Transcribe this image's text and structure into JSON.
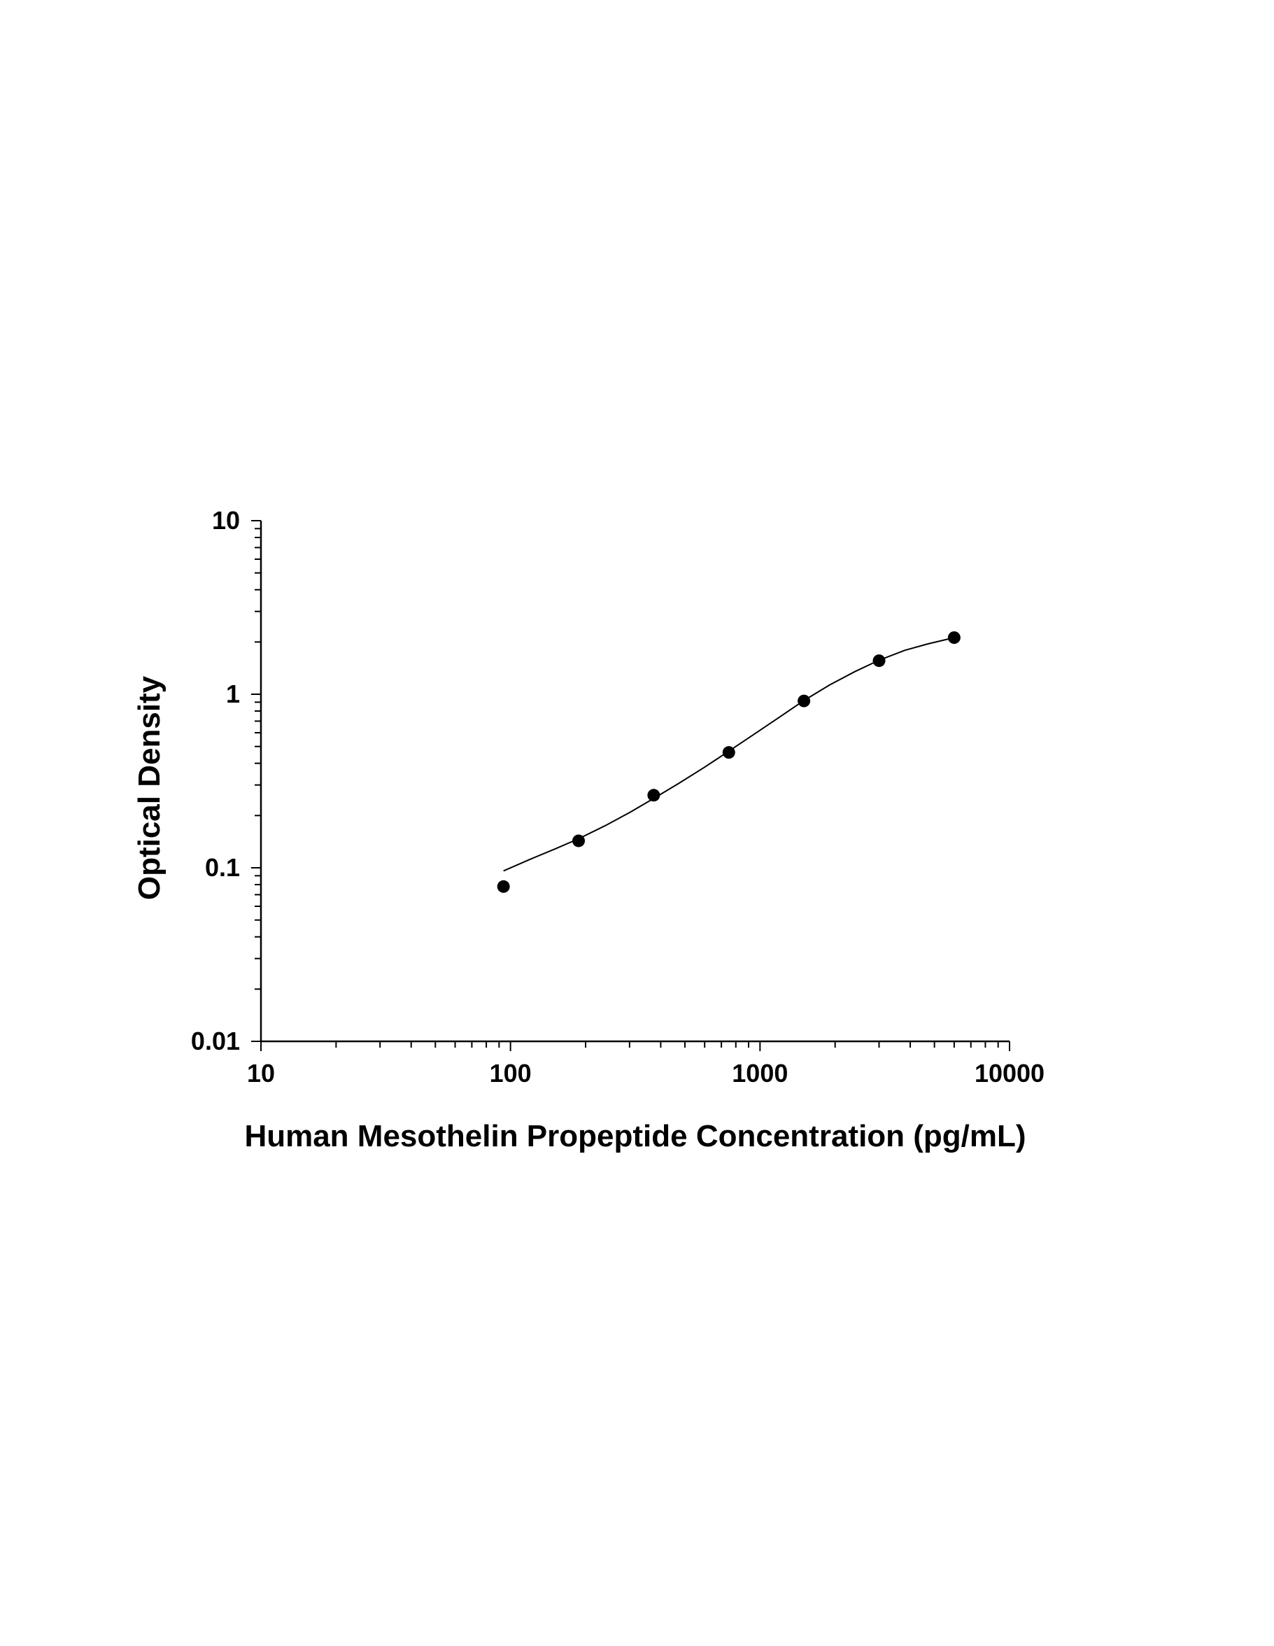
{
  "chart_data": {
    "type": "scatter",
    "title": "",
    "xlabel": "Human Mesothelin Propeptide Concentration (pg/mL)",
    "ylabel": "Optical Density",
    "x_scale": "log",
    "y_scale": "log",
    "xlim": [
      10,
      10000
    ],
    "ylim": [
      0.01,
      10
    ],
    "x_ticks": [
      "10",
      "100",
      "1000",
      "10000"
    ],
    "y_ticks": [
      "10",
      "1",
      "0.1",
      "0.01"
    ],
    "grid": false,
    "legend": "none",
    "series": [
      {
        "x": [
          93.75,
          187.5,
          375,
          750,
          1500,
          3000,
          6000
        ],
        "y": [
          0.078,
          0.143,
          0.262,
          0.462,
          0.915,
          1.56,
          2.12
        ]
      }
    ],
    "fit_curve": {
      "type": "4PL",
      "x": [
        93.75,
        120,
        150,
        187.5,
        240,
        300,
        375,
        470,
        600,
        750,
        950,
        1200,
        1500,
        1900,
        2400,
        3000,
        3800,
        4700,
        6000
      ],
      "y": [
        0.096,
        0.112,
        0.128,
        0.147,
        0.175,
        0.208,
        0.251,
        0.305,
        0.38,
        0.47,
        0.59,
        0.74,
        0.92,
        1.13,
        1.35,
        1.57,
        1.79,
        1.95,
        2.12
      ]
    },
    "colors": {
      "marker": "#000000",
      "line": "#000000",
      "axis": "#000000"
    }
  }
}
